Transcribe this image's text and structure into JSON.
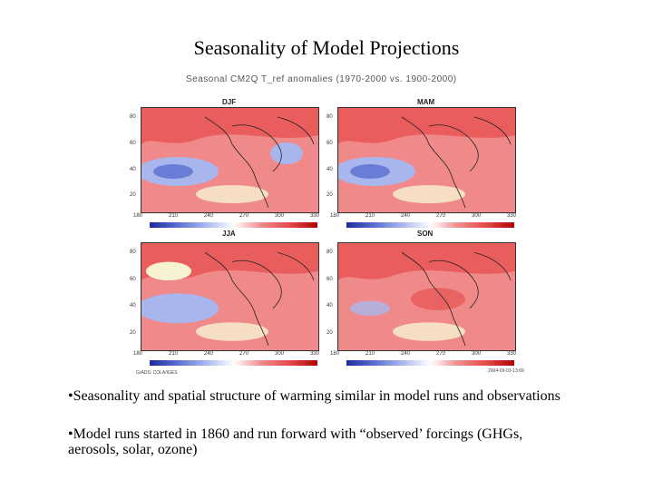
{
  "slide": {
    "title": "Seasonality of Model Projections"
  },
  "figure": {
    "caption": "Seasonal CM2Q T_ref anomalies (1970-2000 vs. 1900-2000)",
    "panels": [
      "DJF",
      "MAM",
      "JJA",
      "SON"
    ],
    "lat_ticks": [
      "80",
      "60",
      "40",
      "20"
    ],
    "lon_ticks": [
      "180",
      "210",
      "240",
      "270",
      "300",
      "330"
    ],
    "credit_left": "GrADS: COLA/IGES",
    "credit_right": "2004-09-03-13:69",
    "colors": {
      "warm": "#f08a8a",
      "hot": "#e54a4a",
      "cool": "#a9b6ee",
      "cold": "#5a6fd0",
      "neutral": "#f7f3d0"
    }
  },
  "bullets": [
    {
      "mark": "•",
      "text": "Seasonality and spatial structure of warming similar in model runs and observations"
    },
    {
      "mark": "•",
      "text": "Model runs started in 1860 and run forward with “observed’ forcings (GHGs, aerosols, solar, ozone)"
    }
  ]
}
